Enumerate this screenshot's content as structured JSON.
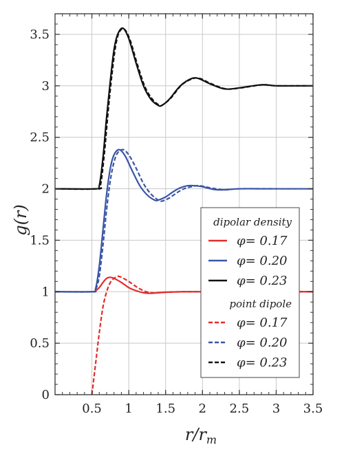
{
  "chart_data": {
    "type": "line",
    "title": "",
    "xlabel": "r/r_m",
    "ylabel": "g(r)",
    "xlim": [
      0,
      3.5
    ],
    "ylim": [
      0,
      3.7
    ],
    "x_ticks": [
      "0.5",
      "1",
      "1.5",
      "2",
      "2.5",
      "3",
      "3.5"
    ],
    "y_ticks": [
      "0",
      "0.5",
      "1",
      "1.5",
      "2",
      "2.5",
      "3",
      "3.5"
    ],
    "grid": true,
    "legend_position": "lower-right",
    "legend_groups": [
      {
        "heading": "dipolar density",
        "style": "solid",
        "series_indices": [
          0,
          1,
          2
        ]
      },
      {
        "heading": "point dipole",
        "style": "dashed",
        "series_indices": [
          3,
          4,
          5
        ]
      }
    ],
    "series": [
      {
        "name": "φ= 0.17",
        "group": "dipolar density",
        "style": "solid",
        "color": "#e32b2b",
        "x": [
          0,
          0.5,
          0.55,
          0.6,
          0.65,
          0.7,
          0.75,
          0.8,
          0.9,
          1.0,
          1.1,
          1.2,
          1.3,
          1.4,
          1.5,
          1.75,
          2.0,
          2.5,
          3.0,
          3.5
        ],
        "y": [
          1.0,
          1.0,
          1.01,
          1.04,
          1.09,
          1.13,
          1.14,
          1.13,
          1.09,
          1.04,
          1.01,
          0.99,
          0.985,
          0.99,
          0.995,
          1.0,
          1.0,
          1.0,
          1.0,
          1.0
        ]
      },
      {
        "name": "φ= 0.20",
        "group": "dipolar density",
        "style": "solid",
        "color": "#3a55a6",
        "x": [
          0,
          0.5,
          0.55,
          0.6,
          0.65,
          0.7,
          0.75,
          0.8,
          0.87,
          0.95,
          1.05,
          1.15,
          1.25,
          1.35,
          1.4,
          1.5,
          1.6,
          1.7,
          1.8,
          1.9,
          2.0,
          2.2,
          2.5,
          2.8,
          3.0,
          3.5
        ],
        "y": [
          1.0,
          1.0,
          1.03,
          1.25,
          1.6,
          1.95,
          2.2,
          2.33,
          2.38,
          2.32,
          2.17,
          2.03,
          1.94,
          1.89,
          1.89,
          1.92,
          1.97,
          2.01,
          2.03,
          2.03,
          2.02,
          1.99,
          2.0,
          2.0,
          2.0,
          2.0
        ]
      },
      {
        "name": "φ= 0.23",
        "group": "dipolar density",
        "style": "solid",
        "color": "#111111",
        "x": [
          0,
          0.55,
          0.6,
          0.65,
          0.7,
          0.75,
          0.8,
          0.85,
          0.92,
          1.0,
          1.1,
          1.2,
          1.3,
          1.4,
          1.45,
          1.55,
          1.7,
          1.85,
          1.95,
          2.1,
          2.3,
          2.5,
          2.8,
          3.0,
          3.2,
          3.5
        ],
        "y": [
          2.0,
          2.0,
          2.03,
          2.3,
          2.7,
          3.05,
          3.35,
          3.5,
          3.56,
          3.46,
          3.22,
          3.0,
          2.87,
          2.81,
          2.81,
          2.87,
          3.0,
          3.07,
          3.07,
          3.02,
          2.97,
          2.98,
          3.01,
          3.0,
          3.0,
          3.0
        ]
      },
      {
        "name": "φ= 0.17",
        "group": "point dipole",
        "style": "dashed",
        "color": "#e32b2b",
        "x": [
          0.5,
          0.55,
          0.6,
          0.65,
          0.7,
          0.75,
          0.8,
          0.85,
          0.9,
          1.0,
          1.1,
          1.2,
          1.3,
          1.4,
          1.5,
          1.75,
          2.0,
          2.5,
          3.0,
          3.5
        ],
        "y": [
          0.0,
          0.3,
          0.6,
          0.85,
          1.0,
          1.09,
          1.13,
          1.15,
          1.14,
          1.1,
          1.05,
          1.01,
          0.99,
          0.99,
          0.995,
          1.0,
          1.0,
          1.0,
          1.0,
          1.0
        ]
      },
      {
        "name": "φ= 0.20",
        "group": "point dipole",
        "style": "dashed",
        "color": "#3a55a6",
        "x": [
          0,
          0.5,
          0.55,
          0.6,
          0.65,
          0.7,
          0.75,
          0.8,
          0.85,
          0.92,
          1.0,
          1.1,
          1.2,
          1.3,
          1.4,
          1.45,
          1.55,
          1.65,
          1.75,
          1.85,
          1.95,
          2.1,
          2.3,
          2.5,
          3.0,
          3.5
        ],
        "y": [
          1.0,
          1.0,
          1.02,
          1.15,
          1.45,
          1.8,
          2.08,
          2.26,
          2.35,
          2.38,
          2.33,
          2.2,
          2.05,
          1.95,
          1.89,
          1.88,
          1.91,
          1.96,
          2.0,
          2.02,
          2.03,
          2.01,
          1.99,
          2.0,
          2.0,
          2.0
        ]
      },
      {
        "name": "φ= 0.23",
        "group": "point dipole",
        "style": "dashed",
        "color": "#111111",
        "x": [
          0,
          0.57,
          0.62,
          0.67,
          0.72,
          0.77,
          0.82,
          0.87,
          0.94,
          1.02,
          1.12,
          1.22,
          1.32,
          1.42,
          1.47,
          1.57,
          1.72,
          1.87,
          1.97,
          2.12,
          2.32,
          2.52,
          2.82,
          3.0,
          3.5
        ],
        "y": [
          2.0,
          2.0,
          2.05,
          2.35,
          2.75,
          3.1,
          3.38,
          3.52,
          3.55,
          3.44,
          3.2,
          2.99,
          2.87,
          2.81,
          2.82,
          2.88,
          3.01,
          3.07,
          3.07,
          3.02,
          2.97,
          2.98,
          3.01,
          3.0,
          3.0
        ]
      }
    ]
  }
}
